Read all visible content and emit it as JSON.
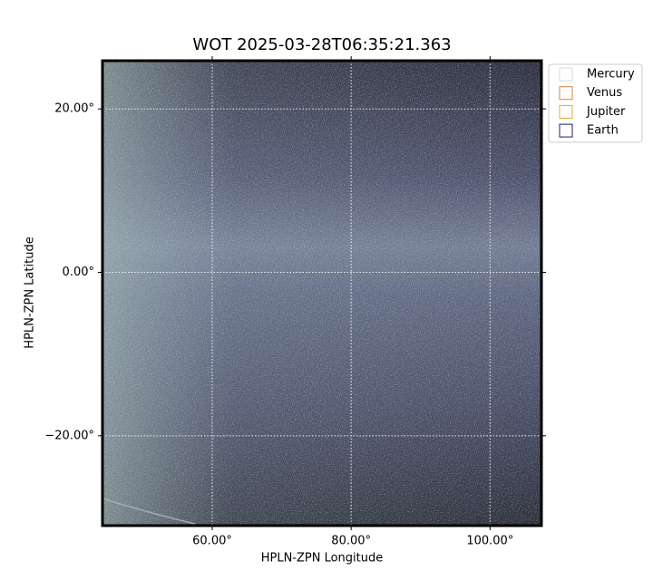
{
  "chart_data": {
    "type": "image",
    "title": "WOT 2025-03-28T06:35:21.363",
    "xlabel": "HPLN-ZPN Longitude",
    "ylabel": "HPLN-ZPN Latitude",
    "xlim": [
      44.2,
      107.4
    ],
    "ylim": [
      -31.0,
      25.9
    ],
    "xticks": [
      {
        "value": 60,
        "label": "60.00°"
      },
      {
        "value": 80,
        "label": "80.00°"
      },
      {
        "value": 100,
        "label": "100.00°"
      }
    ],
    "yticks": [
      {
        "value": -20,
        "label": "−20.00°"
      },
      {
        "value": 0,
        "label": "0.00°"
      },
      {
        "value": 20,
        "label": "20.00°"
      }
    ],
    "grid": true,
    "legend": {
      "loc": "upper right",
      "items": [
        {
          "name": "Mercury",
          "color": "#d9d9d9"
        },
        {
          "name": "Venus",
          "color": "#e0813a"
        },
        {
          "name": "Jupiter",
          "color": "#e0b020"
        },
        {
          "name": "Earth",
          "color": "#1c1c78"
        }
      ]
    }
  }
}
